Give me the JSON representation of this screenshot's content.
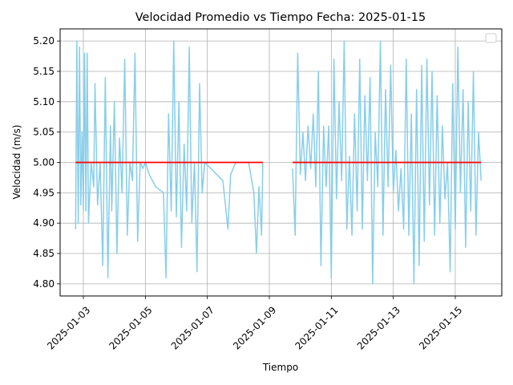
{
  "chart_data": {
    "type": "line",
    "title": "Velocidad Promedio vs Tiempo Fecha: 2025-01-15",
    "xlabel": "Tiempo",
    "ylabel": "Velocidad (m/s)",
    "xlim": [
      "2025-01-02T06:00",
      "2025-01-16T12:00"
    ],
    "ylim": [
      4.78,
      5.22
    ],
    "x_ticks": [
      "2025-01-03",
      "2025-01-05",
      "2025-01-07",
      "2025-01-09",
      "2025-01-11",
      "2025-01-13",
      "2025-01-15"
    ],
    "y_ticks": [
      "4.80",
      "4.85",
      "4.90",
      "4.95",
      "5.00",
      "5.05",
      "5.10",
      "5.15",
      "5.20"
    ],
    "grid": true,
    "legend": {
      "placement": "top-right",
      "entries": []
    },
    "series": [
      {
        "color": "#87ceeb",
        "x": [
          "2025-01-02T18:00",
          "2025-01-02T19:00",
          "2025-01-02T20:00",
          "2025-01-02T21:00",
          "2025-01-02T22:00",
          "2025-01-02T23:00",
          "2025-01-03T00:00",
          "2025-01-03T01:00",
          "2025-01-03T02:00",
          "2025-01-03T03:00",
          "2025-01-03T04:00",
          "2025-01-03T06:00",
          "2025-01-03T08:00",
          "2025-01-03T09:00",
          "2025-01-03T11:00",
          "2025-01-03T13:00",
          "2025-01-03T15:00",
          "2025-01-03T17:00",
          "2025-01-03T19:00",
          "2025-01-03T21:00",
          "2025-01-03T22:00",
          "2025-01-04T00:00",
          "2025-01-04T02:00",
          "2025-01-04T04:00",
          "2025-01-04T06:00",
          "2025-01-04T08:00",
          "2025-01-04T10:00",
          "2025-01-04T12:00",
          "2025-01-04T14:00",
          "2025-01-04T16:00",
          "2025-01-04T18:00",
          "2025-01-04T20:00",
          "2025-01-04T22:00",
          "2025-01-05T00:00",
          "2025-01-05T03:00",
          "2025-01-05T08:00",
          "2025-01-05T14:00",
          "2025-01-05T16:00",
          "2025-01-05T18:00",
          "2025-01-05T20:00",
          "2025-01-05T22:00",
          "2025-01-06T00:00",
          "2025-01-06T02:00",
          "2025-01-06T04:00",
          "2025-01-06T06:00",
          "2025-01-06T08:00",
          "2025-01-06T10:00",
          "2025-01-06T12:00",
          "2025-01-06T14:00",
          "2025-01-06T16:00",
          "2025-01-06T18:00",
          "2025-01-06T20:00",
          "2025-01-06T22:00",
          "2025-01-07T12:00",
          "2025-01-07T14:00",
          "2025-01-07T16:00",
          "2025-01-07T18:00",
          "2025-01-07T20:00",
          "2025-01-07T22:00",
          "2025-01-08T00:00",
          "2025-01-08T04:00",
          "2025-01-08T08:00",
          "2025-01-08T12:00",
          "2025-01-08T14:00",
          "2025-01-08T16:00",
          "2025-01-08T18:00",
          "2025-01-08T19:00"
        ],
        "y": [
          4.89,
          5.2,
          4.9,
          5.19,
          4.93,
          5.05,
          4.92,
          5.18,
          4.92,
          5.18,
          4.9,
          5.0,
          4.96,
          5.13,
          4.93,
          5.0,
          4.83,
          5.14,
          4.81,
          5.06,
          4.92,
          5.1,
          4.85,
          5.04,
          4.95,
          5.17,
          4.88,
          5.0,
          4.97,
          5.18,
          4.87,
          5.0,
          4.99,
          5.0,
          4.98,
          4.96,
          4.95,
          4.81,
          5.08,
          4.92,
          5.2,
          4.91,
          5.1,
          4.86,
          5.03,
          4.92,
          5.19,
          4.9,
          5.0,
          4.82,
          5.13,
          4.95,
          5.0,
          4.97,
          4.93,
          4.89,
          4.98,
          4.99,
          5.0,
          5.0,
          5.0,
          5.0,
          4.95,
          4.85,
          4.96,
          4.88,
          5.0
        ]
      },
      {
        "color": "#87ceeb",
        "x": [
          "2025-01-09T18:00",
          "2025-01-09T20:00",
          "2025-01-09T22:00",
          "2025-01-10T00:00",
          "2025-01-10T02:00",
          "2025-01-10T04:00",
          "2025-01-10T06:00",
          "2025-01-10T08:00",
          "2025-01-10T10:00",
          "2025-01-10T12:00",
          "2025-01-10T14:00",
          "2025-01-10T16:00",
          "2025-01-10T18:00",
          "2025-01-10T20:00",
          "2025-01-10T22:00",
          "2025-01-11T00:00",
          "2025-01-11T02:00",
          "2025-01-11T04:00",
          "2025-01-11T06:00",
          "2025-01-11T08:00",
          "2025-01-11T10:00",
          "2025-01-11T12:00",
          "2025-01-11T14:00",
          "2025-01-11T16:00",
          "2025-01-11T18:00",
          "2025-01-11T20:00",
          "2025-01-11T22:00",
          "2025-01-12T00:00",
          "2025-01-12T02:00",
          "2025-01-12T04:00",
          "2025-01-12T06:00",
          "2025-01-12T08:00",
          "2025-01-12T10:00",
          "2025-01-12T12:00",
          "2025-01-12T14:00",
          "2025-01-12T16:00",
          "2025-01-12T18:00",
          "2025-01-12T20:00",
          "2025-01-12T22:00",
          "2025-01-13T00:00",
          "2025-01-13T02:00",
          "2025-01-13T04:00",
          "2025-01-13T06:00",
          "2025-01-13T08:00",
          "2025-01-13T10:00",
          "2025-01-13T12:00",
          "2025-01-13T14:00",
          "2025-01-13T16:00",
          "2025-01-13T18:00",
          "2025-01-13T20:00",
          "2025-01-13T22:00",
          "2025-01-14T00:00",
          "2025-01-14T02:00",
          "2025-01-14T04:00",
          "2025-01-14T06:00",
          "2025-01-14T08:00",
          "2025-01-14T10:00",
          "2025-01-14T12:00",
          "2025-01-14T14:00",
          "2025-01-14T16:00",
          "2025-01-14T18:00",
          "2025-01-14T20:00",
          "2025-01-14T22:00",
          "2025-01-15T00:00",
          "2025-01-15T02:00",
          "2025-01-15T04:00",
          "2025-01-15T06:00",
          "2025-01-15T08:00",
          "2025-01-15T10:00",
          "2025-01-15T12:00",
          "2025-01-15T14:00",
          "2025-01-15T16:00",
          "2025-01-15T18:00",
          "2025-01-15T20:00"
        ],
        "y": [
          4.99,
          4.88,
          5.18,
          4.98,
          5.05,
          4.97,
          5.06,
          4.99,
          5.08,
          4.96,
          5.15,
          4.83,
          5.06,
          4.96,
          5.06,
          4.81,
          5.17,
          4.94,
          5.1,
          4.97,
          5.2,
          4.89,
          5.01,
          4.88,
          5.08,
          4.92,
          5.17,
          4.89,
          5.11,
          4.97,
          5.14,
          4.8,
          5.05,
          4.96,
          5.2,
          4.88,
          5.12,
          4.96,
          5.16,
          4.95,
          5.02,
          4.92,
          4.99,
          4.89,
          5.17,
          4.88,
          5.08,
          4.8,
          5.12,
          4.83,
          5.16,
          4.87,
          5.17,
          4.93,
          5.15,
          4.88,
          5.11,
          4.9,
          5.06,
          4.94,
          5.0,
          4.82,
          5.13,
          4.89,
          5.19,
          4.95,
          5.12,
          4.86,
          5.1,
          4.92,
          5.15,
          4.88,
          5.05,
          4.97
        ]
      },
      {
        "color": "#ff0000",
        "x": [
          "2025-01-02T18:00",
          "2025-01-08T19:00"
        ],
        "y": [
          5.0,
          5.0
        ]
      },
      {
        "color": "#ff0000",
        "x": [
          "2025-01-09T18:00",
          "2025-01-15T20:00"
        ],
        "y": [
          5.0,
          5.0
        ]
      }
    ]
  }
}
